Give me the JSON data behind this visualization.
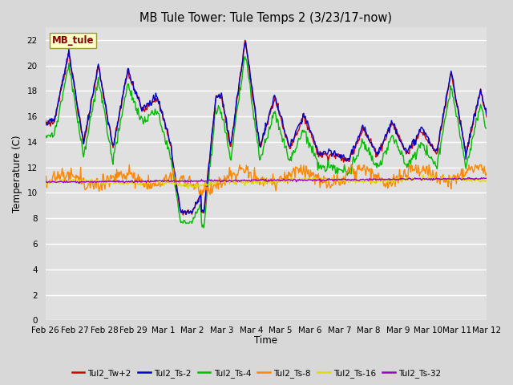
{
  "title": "MB Tule Tower: Tule Temps 2 (3/23/17-now)",
  "xlabel": "Time",
  "ylabel": "Temperature (C)",
  "ylim": [
    0,
    23
  ],
  "yticks": [
    0,
    2,
    4,
    6,
    8,
    10,
    12,
    14,
    16,
    18,
    20,
    22
  ],
  "bg_color": "#d8d8d8",
  "plot_bg_color": "#e0e0e0",
  "grid_color": "white",
  "legend_label": "MB_tule",
  "series_colors": {
    "Tul2_Tw+2": "#cc0000",
    "Tul2_Ts-2": "#0000cc",
    "Tul2_Ts-4": "#00bb00",
    "Tul2_Ts-8": "#ff8800",
    "Tul2_Ts-16": "#dddd00",
    "Tul2_Ts-32": "#9900cc"
  },
  "x_tick_labels": [
    "Feb 26",
    "Feb 27",
    "Feb 28",
    "Feb 29",
    "Mar 1",
    "Mar 2",
    "Mar 3",
    "Mar 4",
    "Mar 5",
    "Mar 6",
    "Mar 7",
    "Mar 8",
    "Mar 9",
    "Mar 10",
    "Mar 11",
    "Mar 12"
  ],
  "figsize": [
    6.4,
    4.8
  ],
  "dpi": 100
}
